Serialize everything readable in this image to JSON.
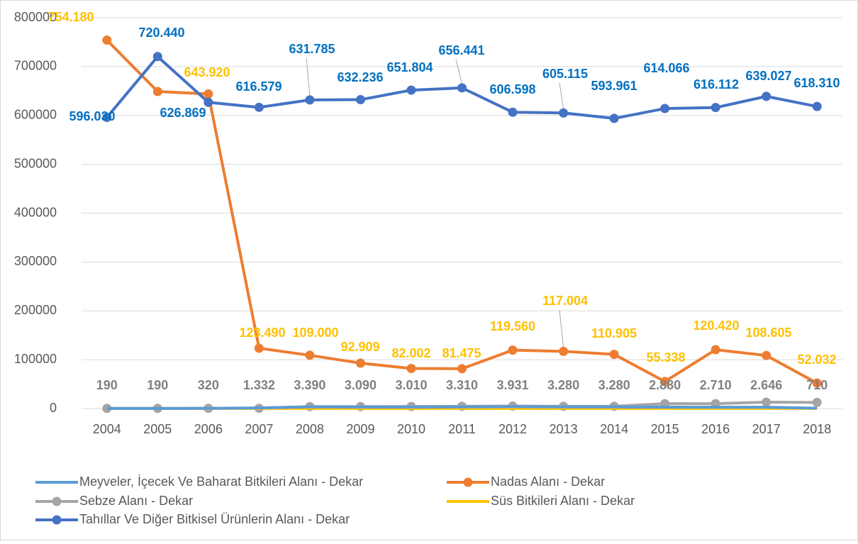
{
  "chart_data": {
    "type": "line",
    "categories": [
      "2004",
      "2005",
      "2006",
      "2007",
      "2008",
      "2009",
      "2010",
      "2011",
      "2012",
      "2013",
      "2014",
      "2015",
      "2016",
      "2017",
      "2018"
    ],
    "ylim": [
      0,
      800000
    ],
    "yticks": [
      0,
      100000,
      200000,
      300000,
      400000,
      500000,
      600000,
      700000,
      800000
    ],
    "grid": true,
    "legend": "bottom",
    "series": [
      {
        "name": "Meyveler, İçecek Ve Baharat Bitkileri Alanı - Dekar",
        "color": "#5b9bd5",
        "marker": false,
        "label_color": "#808080",
        "values": [
          190,
          190,
          320,
          1332,
          3390,
          3090,
          3010,
          3310,
          3931,
          3280,
          3280,
          2880,
          2710,
          2646,
          710
        ],
        "value_labels": [
          "190",
          "190",
          "320",
          "1.332",
          "3.390",
          "3.090",
          "3.010",
          "3.310",
          "3.931",
          "3.280",
          "3.280",
          "2.880",
          "2.710",
          "2.646",
          "710"
        ]
      },
      {
        "name": "Nadas Alanı - Dekar",
        "color": "#ed7d31",
        "marker": true,
        "label_color": "#ffc000",
        "values": [
          754180,
          649000,
          643920,
          123490,
          109000,
          92909,
          82002,
          81475,
          119560,
          117004,
          110905,
          55338,
          120420,
          108605,
          52032
        ],
        "value_labels": [
          "754.180",
          null,
          "643.920",
          "123.490",
          "109.000",
          "92.909",
          "82.002",
          "81.475",
          "119.560",
          "117.004",
          "110.905",
          "55.338",
          "120.420",
          "108.605",
          "52.032"
        ]
      },
      {
        "name": "Sebze Alanı - Dekar",
        "color": "#a5a5a5",
        "marker": true,
        "values": [
          300,
          400,
          500,
          600,
          4000,
          4000,
          4200,
          4500,
          5000,
          4500,
          4500,
          10000,
          10000,
          13000,
          12500
        ]
      },
      {
        "name": "Süs Bitkileri Alanı - Dekar",
        "color": "#ffc000",
        "marker": false,
        "values": [
          100,
          100,
          100,
          100,
          100,
          100,
          100,
          100,
          100,
          100,
          100,
          100,
          100,
          100,
          100
        ]
      },
      {
        "name": "Tahıllar Ve Diğer Bitkisel Ürünlerin Alanı - Dekar",
        "color": "#4472c4",
        "marker": true,
        "label_color": "#0070c0",
        "values": [
          596030,
          720440,
          626869,
          616579,
          631785,
          632236,
          651804,
          656441,
          606598,
          605115,
          593961,
          614066,
          616112,
          639027,
          618310
        ],
        "value_labels": [
          "596.030",
          "720.440",
          "626.869",
          "616.579",
          "631.785",
          "632.236",
          "651.804",
          "656.441",
          "606.598",
          "605.115",
          "593.961",
          "614.066",
          "616.112",
          "639.027",
          "618.310"
        ]
      }
    ]
  }
}
